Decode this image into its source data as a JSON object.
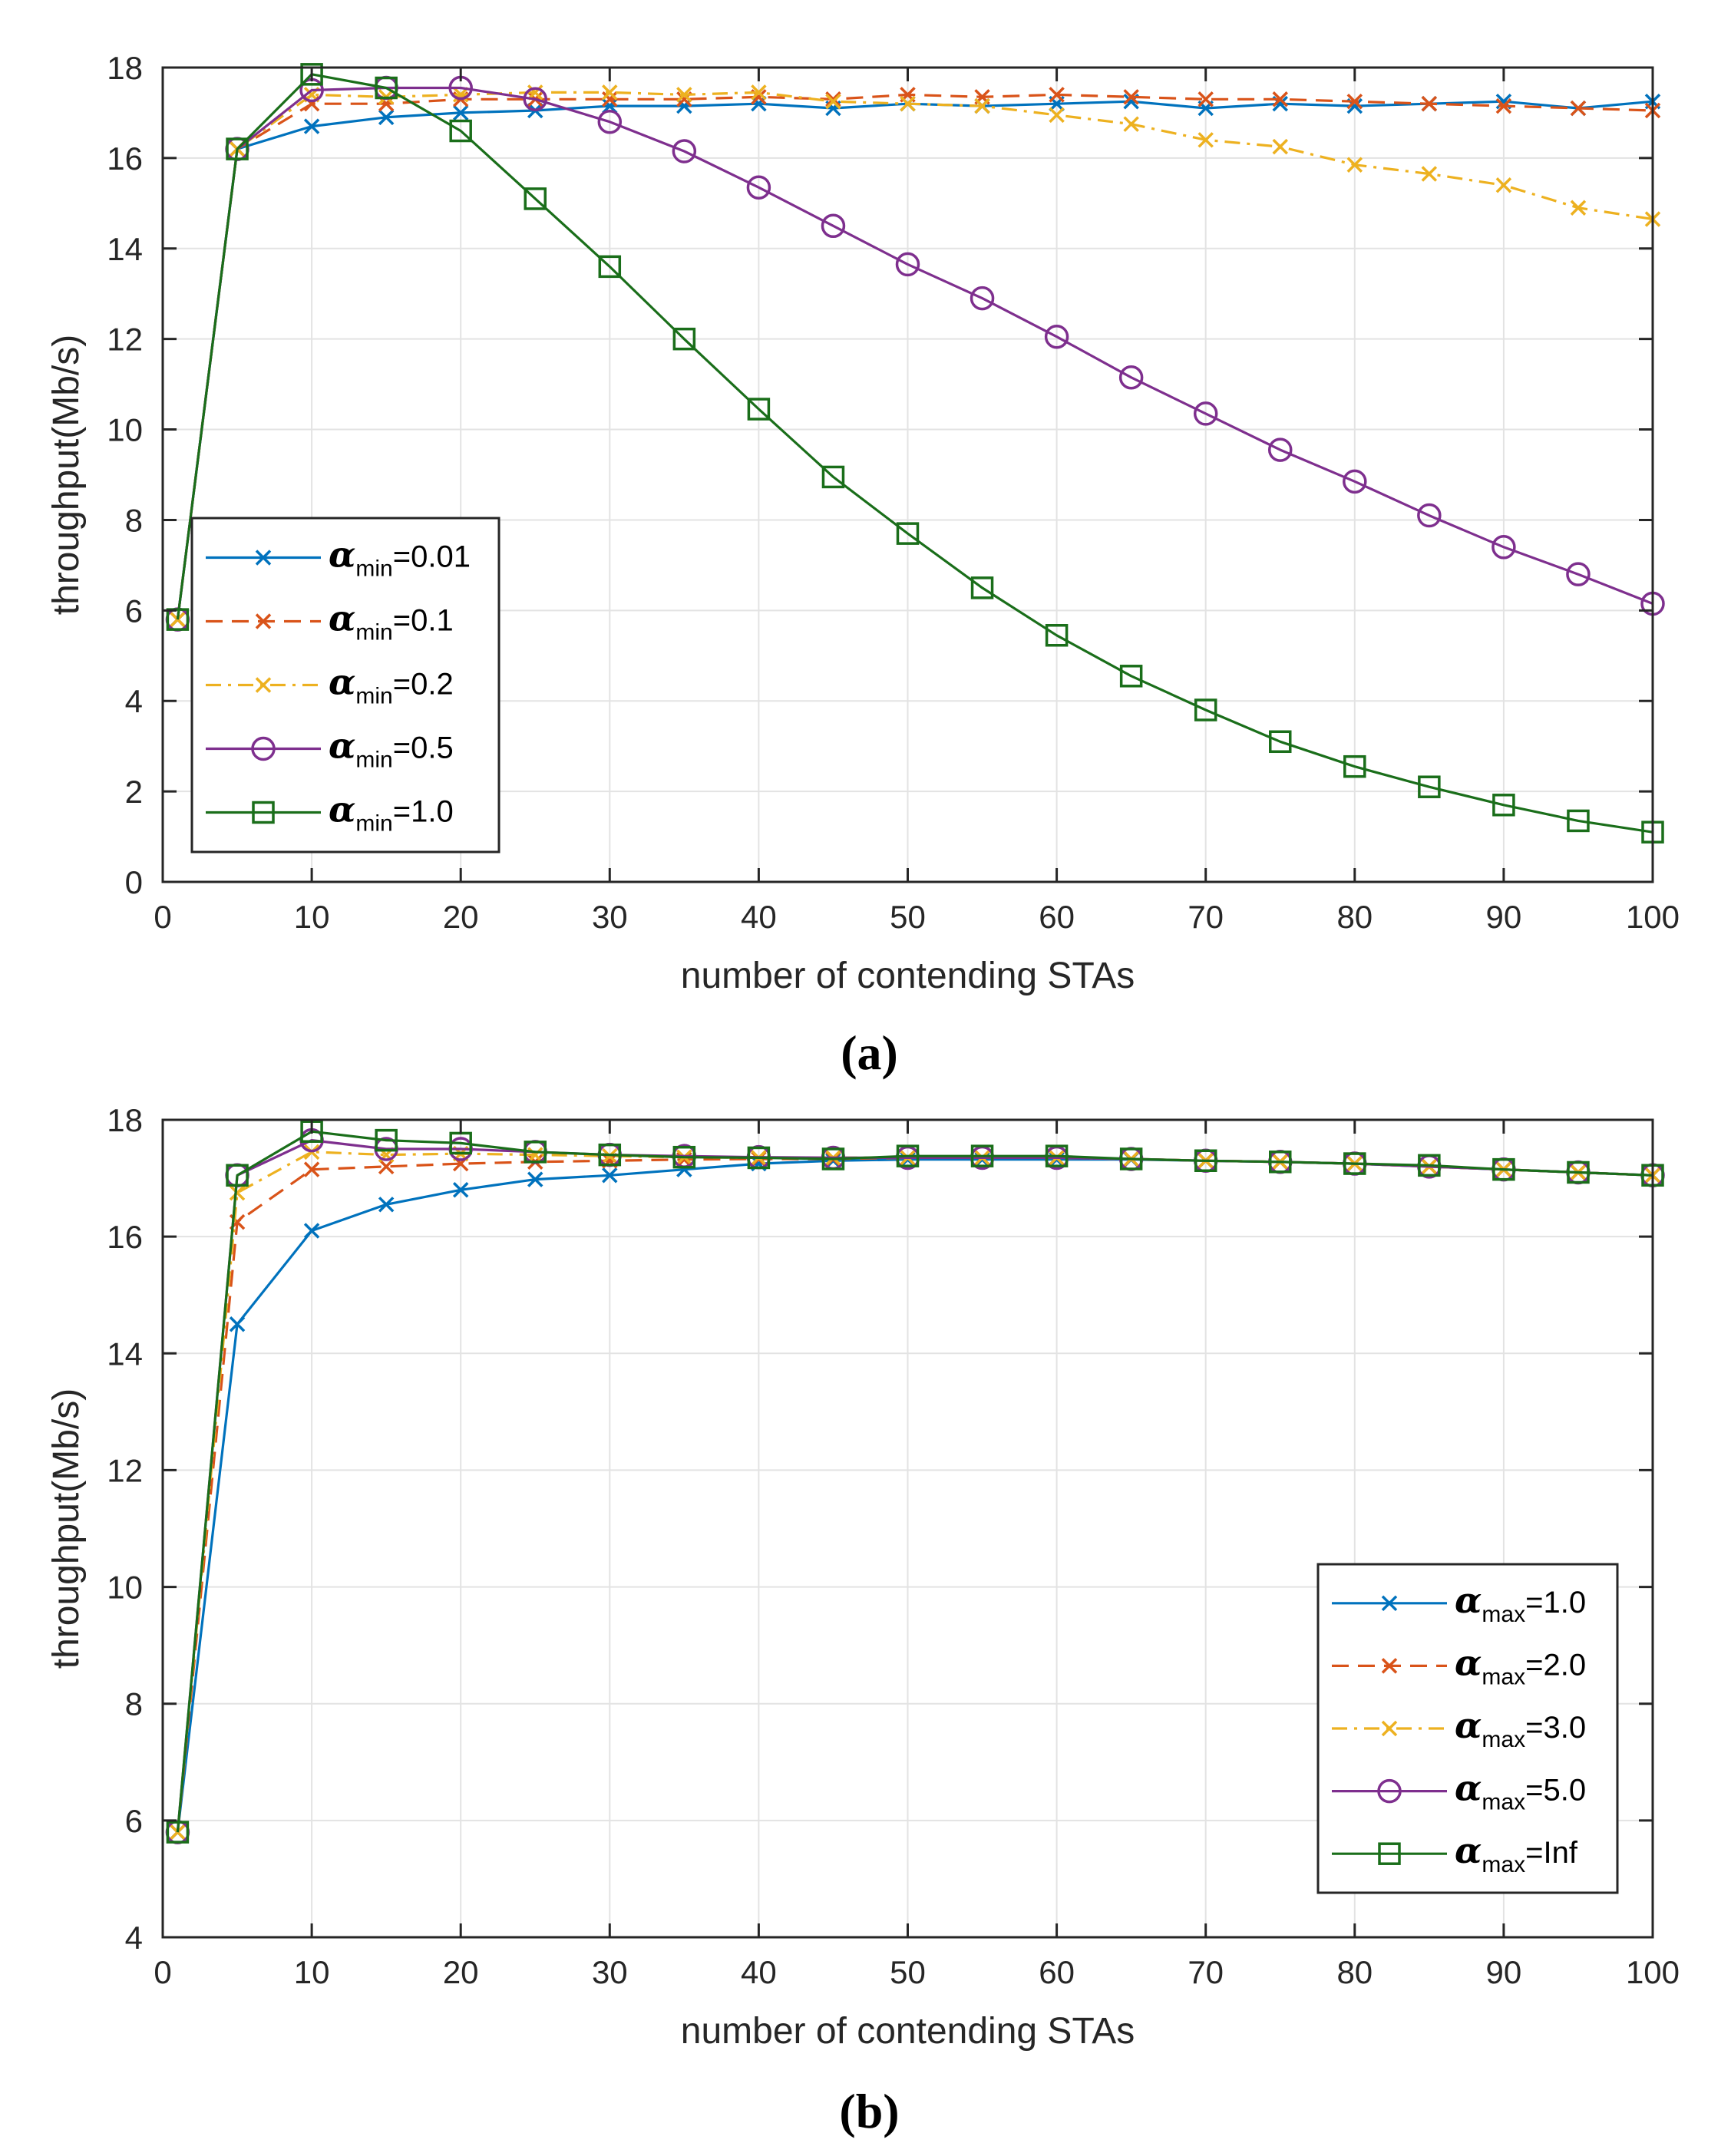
{
  "chart_data": [
    {
      "type": "line",
      "caption": "(a)",
      "xlabel": "number of contending STAs",
      "ylabel": "throughput(Mb/s)",
      "xlim": [
        0,
        100
      ],
      "ylim": [
        0,
        18
      ],
      "xticks": [
        "0",
        "10",
        "20",
        "30",
        "40",
        "50",
        "60",
        "70",
        "80",
        "90",
        "100"
      ],
      "yticks": [
        "0",
        "2",
        "4",
        "6",
        "8",
        "10",
        "12",
        "14",
        "16",
        "18"
      ],
      "grid": true,
      "legend_position": "middle-left",
      "x": [
        1,
        5,
        10,
        15,
        20,
        25,
        30,
        35,
        40,
        45,
        50,
        55,
        60,
        65,
        70,
        75,
        80,
        85,
        90,
        95,
        100
      ],
      "series": [
        {
          "name": "α_min=0.01",
          "greek": "α",
          "sub": "min",
          "tail": "=0.01",
          "color": "#0072BD",
          "marker": "x",
          "dash": "solid",
          "values": [
            5.8,
            16.2,
            16.7,
            16.9,
            17.0,
            17.05,
            17.15,
            17.15,
            17.2,
            17.1,
            17.2,
            17.15,
            17.2,
            17.25,
            17.1,
            17.2,
            17.15,
            17.2,
            17.25,
            17.1,
            17.25
          ]
        },
        {
          "name": "α_min=0.1",
          "greek": "α",
          "sub": "min",
          "tail": "=0.1",
          "color": "#D95319",
          "marker": "x",
          "dash": "dashed",
          "values": [
            5.8,
            16.2,
            17.2,
            17.2,
            17.3,
            17.3,
            17.3,
            17.3,
            17.35,
            17.3,
            17.4,
            17.35,
            17.4,
            17.35,
            17.3,
            17.3,
            17.25,
            17.2,
            17.15,
            17.1,
            17.05
          ]
        },
        {
          "name": "α_min=0.2",
          "greek": "α",
          "sub": "min",
          "tail": "=0.2",
          "color": "#EDB120",
          "marker": "x",
          "dash": "dashdot",
          "values": [
            5.8,
            16.2,
            17.4,
            17.35,
            17.4,
            17.45,
            17.45,
            17.4,
            17.45,
            17.25,
            17.2,
            17.15,
            16.95,
            16.75,
            16.4,
            16.25,
            15.85,
            15.65,
            15.4,
            14.9,
            14.65
          ]
        },
        {
          "name": "α_min=0.5",
          "greek": "α",
          "sub": "min",
          "tail": "=0.5",
          "color": "#7E2F8E",
          "marker": "o",
          "dash": "solid",
          "values": [
            5.8,
            16.2,
            17.5,
            17.55,
            17.55,
            17.3,
            16.8,
            16.15,
            15.35,
            14.5,
            13.65,
            12.9,
            12.05,
            11.15,
            10.35,
            9.55,
            8.85,
            8.1,
            7.4,
            6.8,
            6.15
          ]
        },
        {
          "name": "α_min=1.0",
          "greek": "α",
          "sub": "min",
          "tail": "=1.0",
          "color": "#1A6E1A",
          "marker": "s",
          "dash": "solid",
          "values": [
            5.8,
            16.2,
            17.85,
            17.55,
            16.6,
            15.1,
            13.6,
            12.0,
            10.45,
            8.95,
            7.7,
            6.5,
            5.45,
            4.55,
            3.8,
            3.1,
            2.55,
            2.1,
            1.7,
            1.35,
            1.1
          ]
        }
      ]
    },
    {
      "type": "line",
      "caption": "(b)",
      "xlabel": "number of contending STAs",
      "ylabel": "throughput(Mb/s)",
      "xlim": [
        0,
        100
      ],
      "ylim": [
        4,
        18
      ],
      "xticks": [
        "0",
        "10",
        "20",
        "30",
        "40",
        "50",
        "60",
        "70",
        "80",
        "90",
        "100"
      ],
      "yticks": [
        "4",
        "6",
        "8",
        "10",
        "12",
        "14",
        "16",
        "18"
      ],
      "grid": true,
      "legend_position": "bottom-right",
      "x": [
        1,
        5,
        10,
        15,
        20,
        25,
        30,
        35,
        40,
        45,
        50,
        55,
        60,
        65,
        70,
        75,
        80,
        85,
        90,
        95,
        100
      ],
      "series": [
        {
          "name": "α_max=1.0",
          "greek": "α",
          "sub": "max",
          "tail": "=1.0",
          "color": "#0072BD",
          "marker": "x",
          "dash": "solid",
          "values": [
            5.8,
            14.5,
            16.1,
            16.55,
            16.8,
            16.98,
            17.05,
            17.15,
            17.25,
            17.3,
            17.32,
            17.32,
            17.32,
            17.32,
            17.3,
            17.28,
            17.25,
            17.2,
            17.15,
            17.1,
            17.05
          ]
        },
        {
          "name": "α_max=2.0",
          "greek": "α",
          "sub": "max",
          "tail": "=2.0",
          "color": "#D95319",
          "marker": "x",
          "dash": "dashed",
          "values": [
            5.8,
            16.25,
            17.15,
            17.2,
            17.25,
            17.28,
            17.3,
            17.32,
            17.33,
            17.33,
            17.35,
            17.35,
            17.35,
            17.33,
            17.3,
            17.28,
            17.25,
            17.2,
            17.15,
            17.1,
            17.05
          ]
        },
        {
          "name": "α_max=3.0",
          "greek": "α",
          "sub": "max",
          "tail": "=3.0",
          "color": "#EDB120",
          "marker": "x",
          "dash": "dashdot",
          "values": [
            5.8,
            16.75,
            17.45,
            17.4,
            17.42,
            17.4,
            17.38,
            17.36,
            17.35,
            17.35,
            17.35,
            17.35,
            17.35,
            17.33,
            17.3,
            17.28,
            17.25,
            17.2,
            17.15,
            17.1,
            17.05
          ]
        },
        {
          "name": "α_max=5.0",
          "greek": "α",
          "sub": "max",
          "tail": "=5.0",
          "color": "#7E2F8E",
          "marker": "o",
          "dash": "solid",
          "values": [
            5.8,
            17.05,
            17.65,
            17.5,
            17.5,
            17.45,
            17.4,
            17.38,
            17.36,
            17.35,
            17.35,
            17.35,
            17.35,
            17.33,
            17.3,
            17.28,
            17.25,
            17.2,
            17.15,
            17.1,
            17.05
          ]
        },
        {
          "name": "α_max=Inf",
          "greek": "α",
          "sub": "max",
          "tail": "=Inf",
          "color": "#1A6E1A",
          "marker": "s",
          "dash": "solid",
          "values": [
            5.8,
            17.05,
            17.8,
            17.65,
            17.6,
            17.45,
            17.4,
            17.36,
            17.35,
            17.33,
            17.38,
            17.38,
            17.38,
            17.33,
            17.3,
            17.28,
            17.25,
            17.22,
            17.15,
            17.1,
            17.05
          ]
        }
      ]
    }
  ]
}
